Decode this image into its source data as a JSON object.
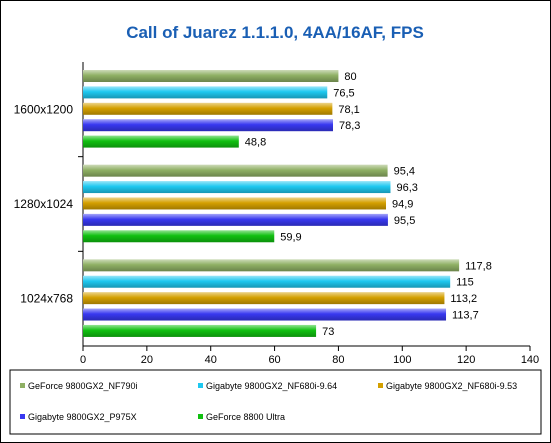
{
  "chart_data": {
    "type": "bar",
    "orientation": "horizontal",
    "title": "Call of Juarez 1.1.1.0, 4AA/16AF, FPS",
    "title_color": "#1a5fb4",
    "categories": [
      "1600x1200",
      "1280x1024",
      "1024x768"
    ],
    "series": [
      {
        "name": "GeForce 9800GX2_NF790i",
        "color": "#8fb064",
        "values": [
          80,
          95.4,
          117.8
        ],
        "labels": [
          "80",
          "95,4",
          "117,8"
        ]
      },
      {
        "name": "Gigabyte 9800GX2_NF680i-9.64",
        "color": "#1ec8f0",
        "values": [
          76.5,
          96.3,
          115
        ],
        "labels": [
          "76,5",
          "96,3",
          "115"
        ]
      },
      {
        "name": "Gigabyte 9800GX2_NF680i-9.53",
        "color": "#d4a000",
        "values": [
          78.1,
          94.9,
          113.2
        ],
        "labels": [
          "78,1",
          "94,9",
          "113,2"
        ]
      },
      {
        "name": "Gigabyte 9800GX2_P975X",
        "color": "#3838f0",
        "values": [
          78.3,
          95.5,
          113.7
        ],
        "labels": [
          "78,3",
          "95,5",
          "113,7"
        ]
      },
      {
        "name": "GeForce 8800 Ultra",
        "color": "#10c010",
        "values": [
          48.8,
          59.9,
          73
        ],
        "labels": [
          "48,8",
          "59,9",
          "73"
        ]
      }
    ],
    "xlim": [
      0,
      140
    ],
    "xticks": [
      0,
      20,
      40,
      60,
      80,
      100,
      120,
      140
    ],
    "xticklabels": [
      "0",
      "20",
      "40",
      "60",
      "80",
      "100",
      "120",
      "140"
    ],
    "grid": false,
    "legend_position": "bottom"
  }
}
